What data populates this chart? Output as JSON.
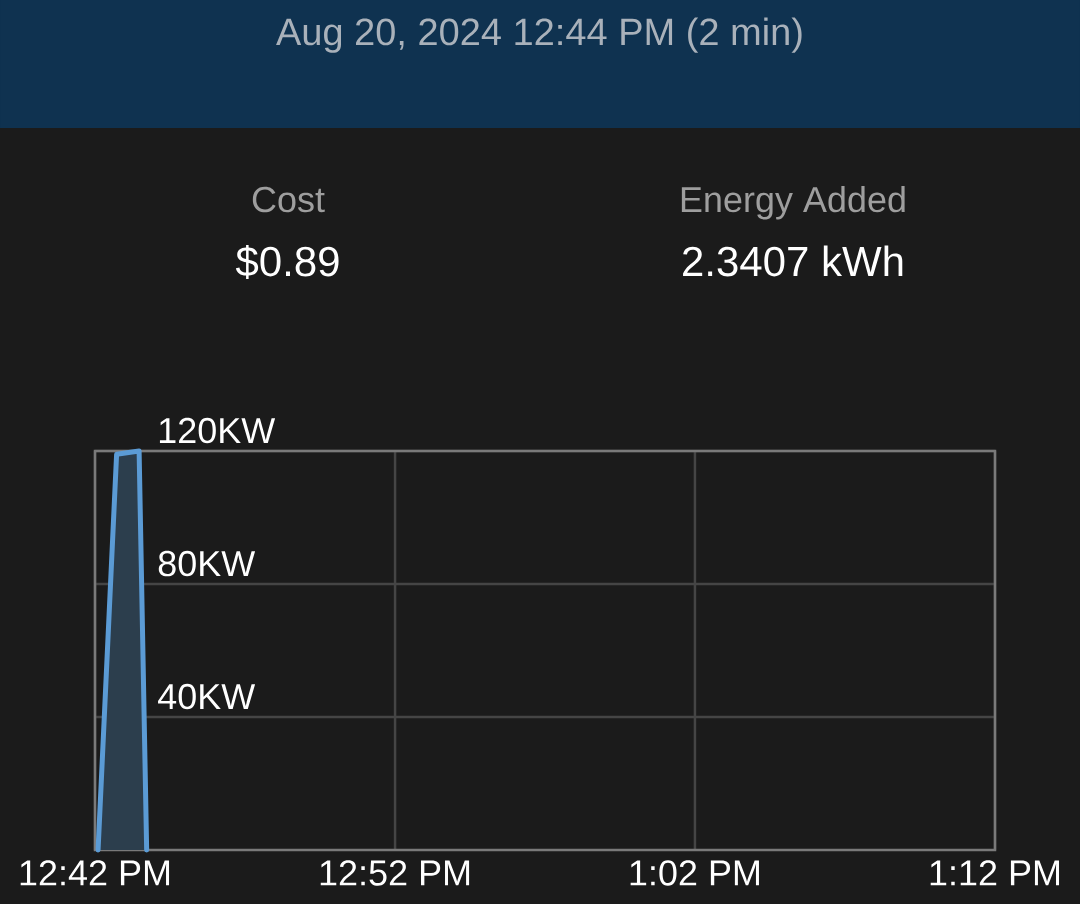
{
  "chart_data": {
    "type": "area",
    "title": "Aug 20, 2024 12:44 PM (2 min)",
    "annotations": [
      "Cost",
      "$0.89",
      "Energy Added",
      "2.3407 kWh"
    ],
    "x": [
      12.7017,
      12.712,
      12.7245,
      12.7287
    ],
    "values": [
      0,
      119,
      120,
      0
    ],
    "color": "#5b9bd5",
    "xlim": [
      12.7,
      13.2
    ],
    "xticks": [
      {
        "value": 12.7,
        "label": "12:42 PM"
      },
      {
        "value": 12.8667,
        "label": "12:52 PM"
      },
      {
        "value": 13.0333,
        "label": "1:02 PM"
      },
      {
        "value": 13.2,
        "label": "1:12 PM"
      }
    ],
    "ylim": [
      0,
      120
    ],
    "yticks": [
      {
        "value": 40,
        "label": "40KW"
      },
      {
        "value": 80,
        "label": "80KW"
      },
      {
        "value": 120,
        "label": "120KW"
      }
    ],
    "grid": true
  }
}
